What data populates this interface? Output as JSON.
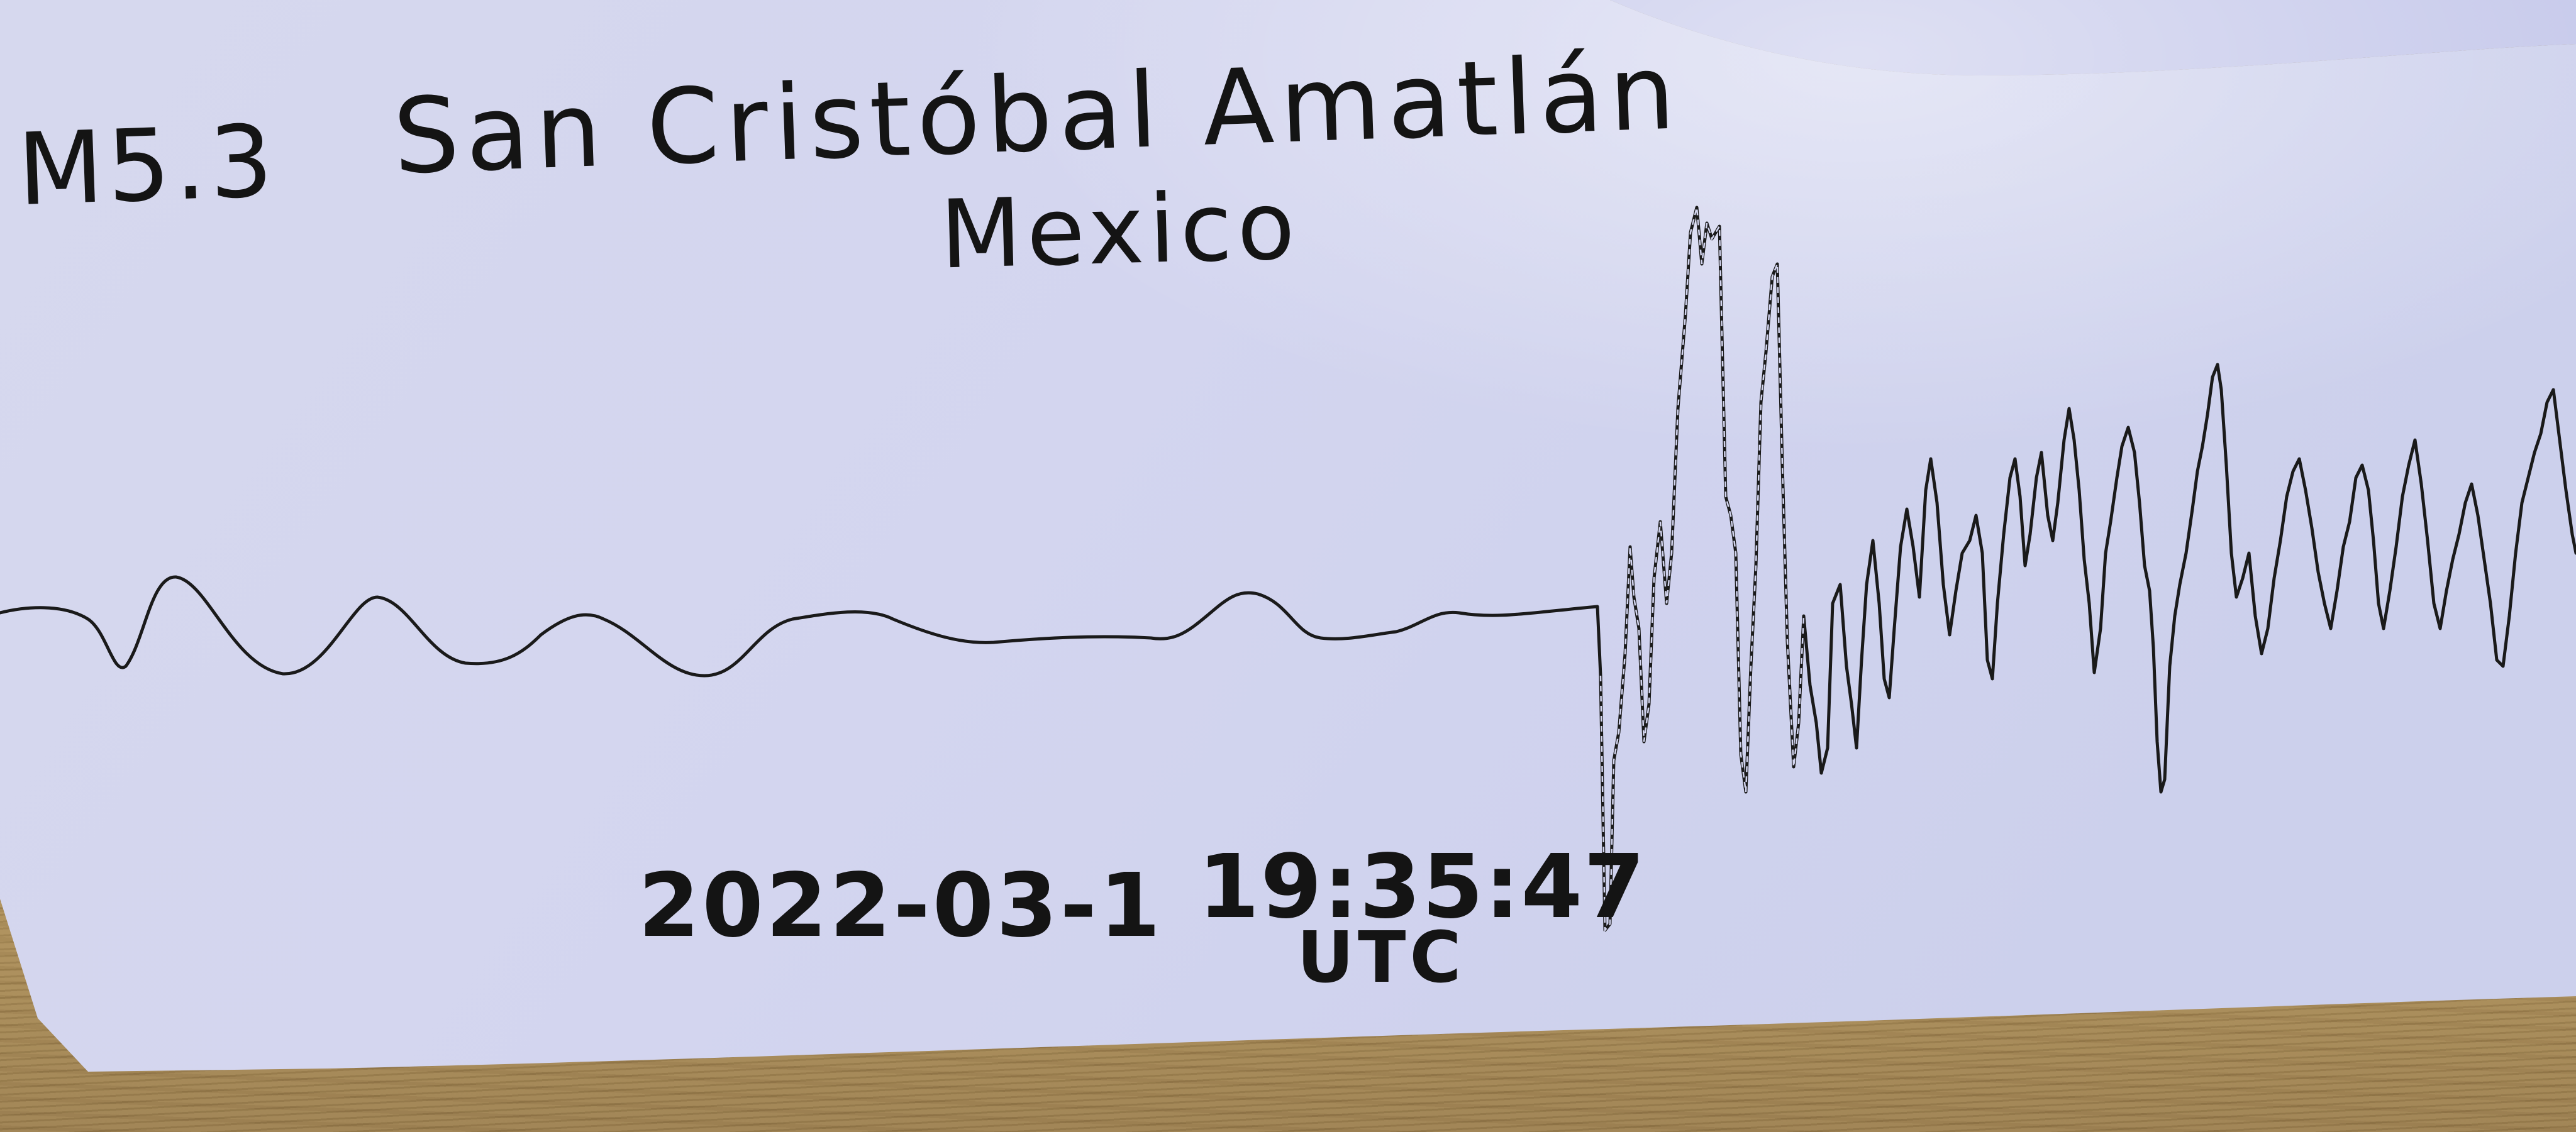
{
  "seismogram": {
    "magnitude": "M5.3",
    "place": "San Cristóbal Amatlán",
    "country": "Mexico",
    "date": "2022-03-1",
    "time": "19:35:47",
    "timezone": "UTC"
  },
  "colors": {
    "paper": "#d9dbf0",
    "ink": "#141414",
    "table": "#b8995f"
  }
}
